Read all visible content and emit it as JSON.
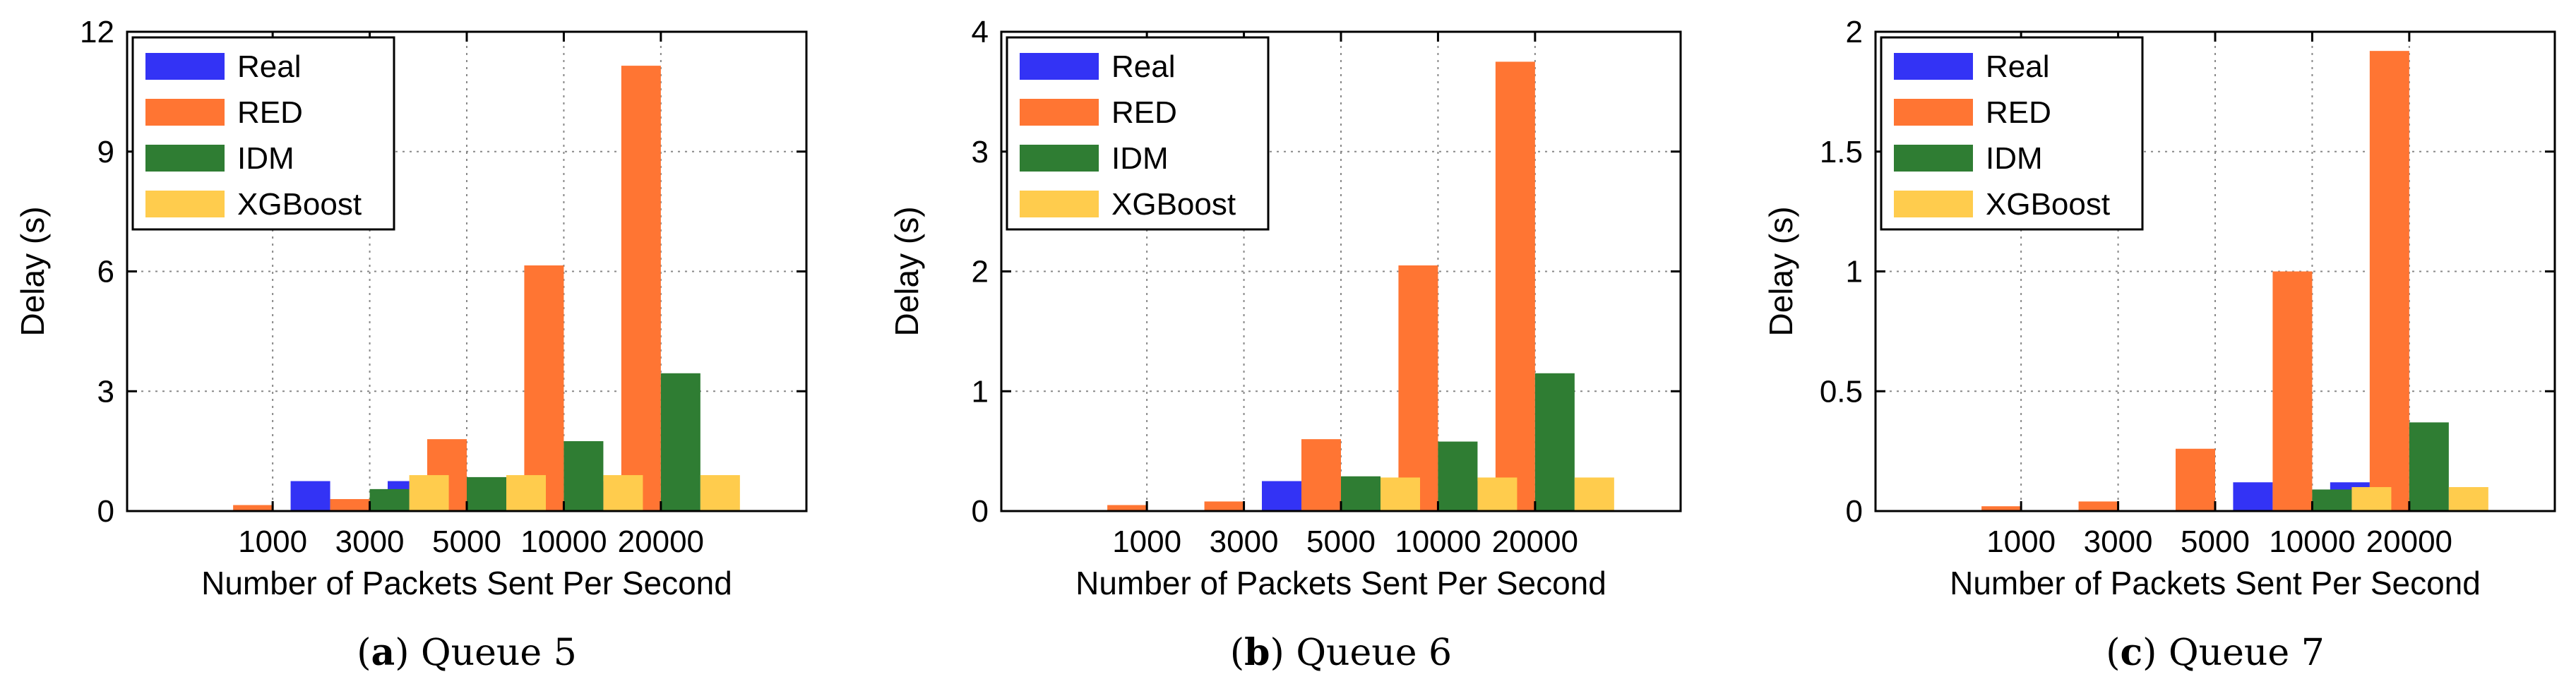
{
  "colors": {
    "Real": "#3333f5",
    "RED": "#ff7533",
    "IDM": "#2f7d33",
    "XGBoost": "#ffcc4d",
    "grid": "#888888",
    "frame": "#000000"
  },
  "chart_data": [
    {
      "type": "bar",
      "panel_label": "a",
      "title": "Queue 5",
      "xlabel": "Number of Packets Sent Per Second",
      "ylabel": "Delay (s)",
      "ylim": [
        0,
        12
      ],
      "yticks": [
        "0",
        "3",
        "6",
        "9",
        "12"
      ],
      "ytick_values": [
        0,
        3,
        6,
        9,
        12
      ],
      "grid": true,
      "legend_position": "top-left",
      "categories": [
        "1000",
        "3000",
        "5000",
        "10000",
        "20000"
      ],
      "series": [
        {
          "name": "Real",
          "values": [
            0,
            0.75,
            0.75,
            0.75,
            0.75
          ]
        },
        {
          "name": "RED",
          "values": [
            0.15,
            0.3,
            1.8,
            6.15,
            11.15
          ]
        },
        {
          "name": "IDM",
          "values": [
            0,
            0.55,
            0.85,
            1.75,
            3.45
          ]
        },
        {
          "name": "XGBoost",
          "values": [
            0,
            0.9,
            0.9,
            0.9,
            0.9
          ]
        }
      ]
    },
    {
      "type": "bar",
      "panel_label": "b",
      "title": "Queue 6",
      "xlabel": "Number of Packets Sent Per Second",
      "ylabel": "Delay (s)",
      "ylim": [
        0,
        4
      ],
      "yticks": [
        "0",
        "1",
        "2",
        "3",
        "4"
      ],
      "ytick_values": [
        0,
        1,
        2,
        3,
        4
      ],
      "grid": true,
      "legend_position": "top-left",
      "categories": [
        "1000",
        "3000",
        "5000",
        "10000",
        "20000"
      ],
      "series": [
        {
          "name": "Real",
          "values": [
            0,
            0,
            0.25,
            0.25,
            0.25
          ]
        },
        {
          "name": "RED",
          "values": [
            0.05,
            0.08,
            0.6,
            2.05,
            3.75
          ]
        },
        {
          "name": "IDM",
          "values": [
            0,
            0,
            0.29,
            0.58,
            1.15
          ]
        },
        {
          "name": "XGBoost",
          "values": [
            0,
            0,
            0.28,
            0.28,
            0.28
          ]
        }
      ]
    },
    {
      "type": "bar",
      "panel_label": "c",
      "title": "Queue 7",
      "xlabel": "Number of Packets Sent Per Second",
      "ylabel": "Delay (s)",
      "ylim": [
        0,
        2
      ],
      "yticks": [
        "0",
        "0.5",
        "1",
        "1.5",
        "2"
      ],
      "ytick_values": [
        0,
        0.5,
        1,
        1.5,
        2
      ],
      "grid": true,
      "legend_position": "top-left",
      "categories": [
        "1000",
        "3000",
        "5000",
        "10000",
        "20000"
      ],
      "series": [
        {
          "name": "Real",
          "values": [
            0,
            0,
            0,
            0.12,
            0.12
          ]
        },
        {
          "name": "RED",
          "values": [
            0.02,
            0.04,
            0.26,
            1.0,
            1.92
          ]
        },
        {
          "name": "IDM",
          "values": [
            0,
            0,
            0,
            0.09,
            0.37
          ]
        },
        {
          "name": "XGBoost",
          "values": [
            0,
            0,
            0,
            0.1,
            0.1
          ]
        }
      ]
    }
  ]
}
